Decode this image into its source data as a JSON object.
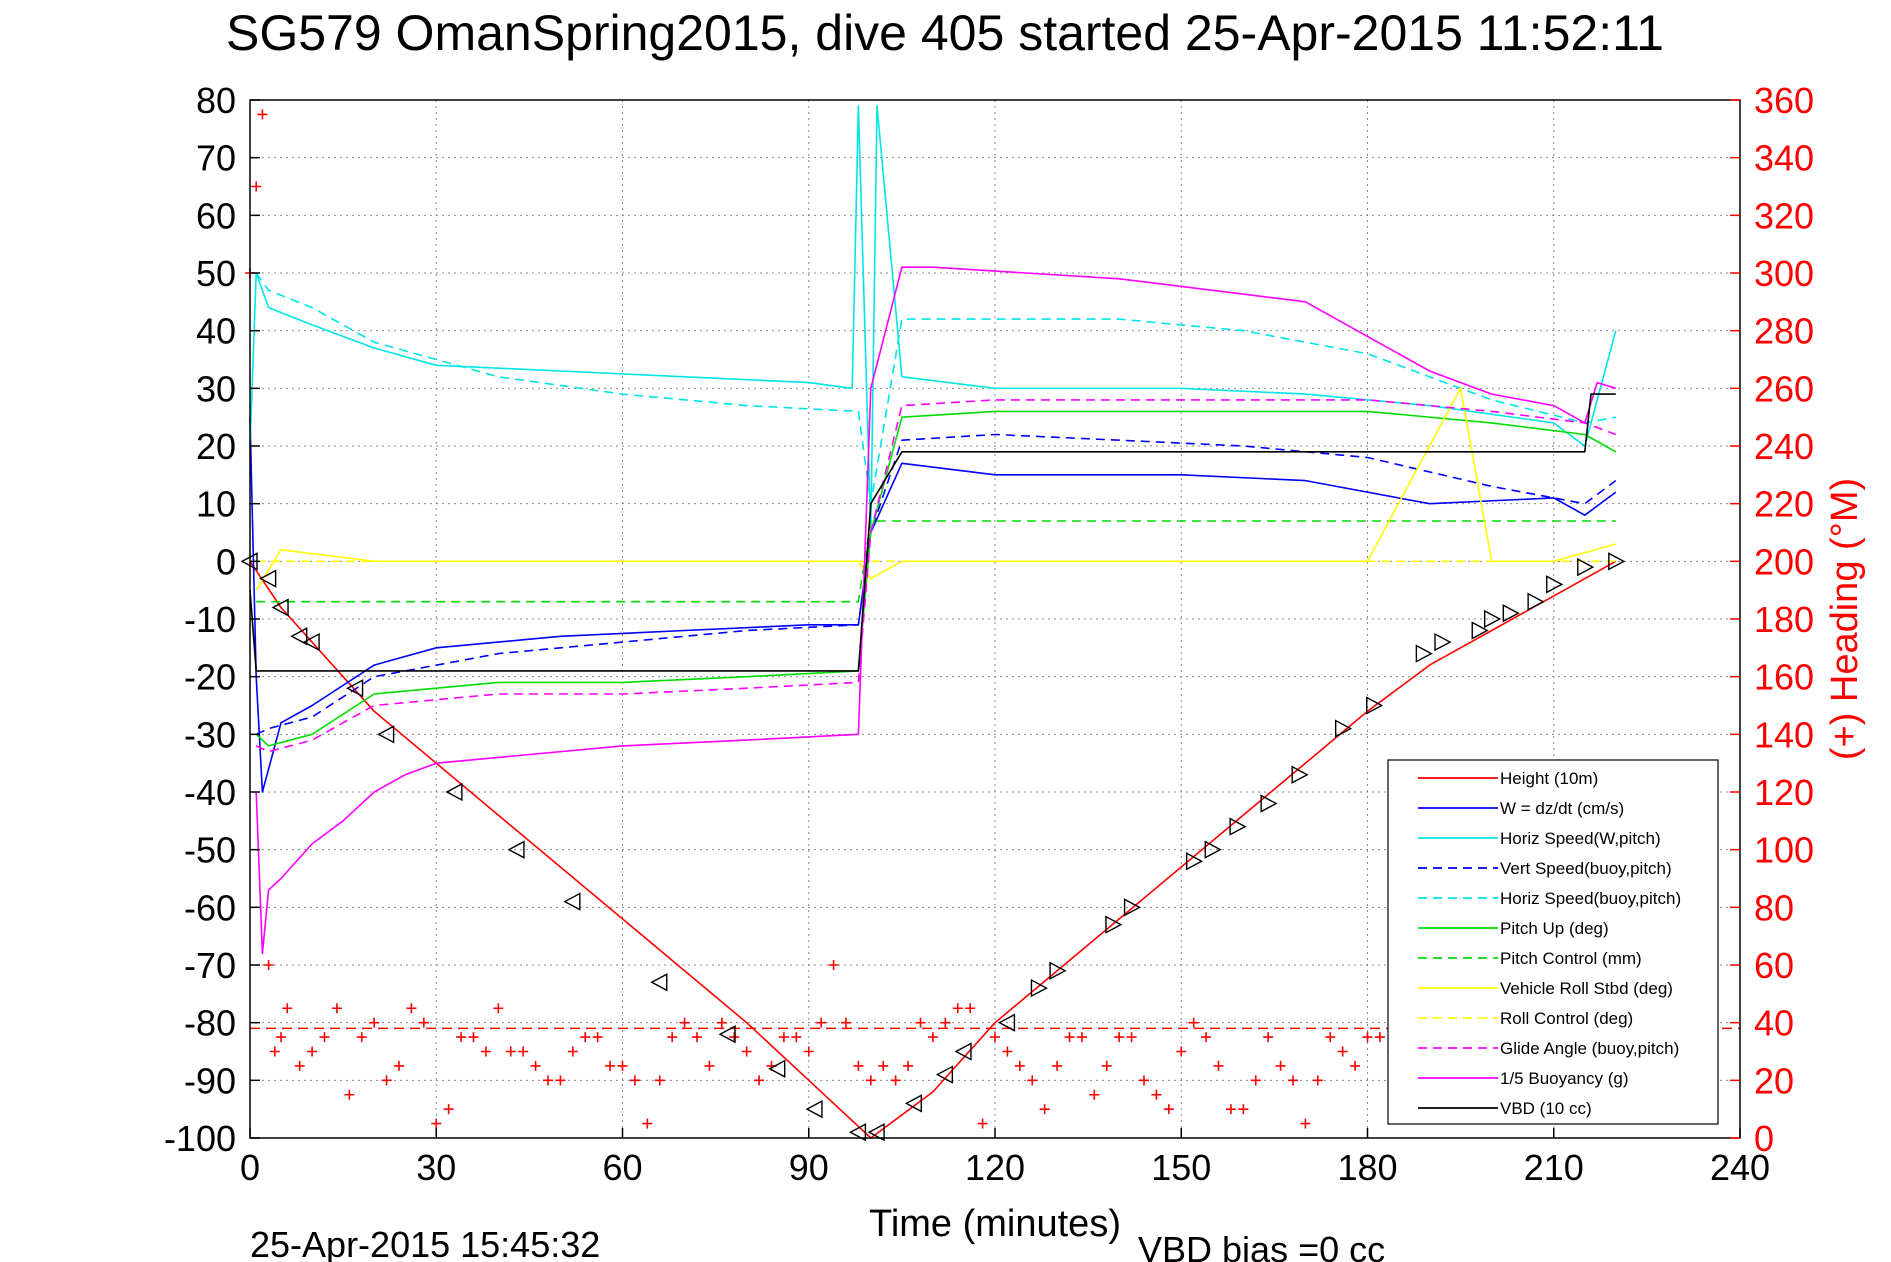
{
  "chart_data": {
    "type": "line",
    "title": "SG579 OmanSpring2015, dive 405 started 25-Apr-2015 11:52:11",
    "xlabel": "Time (minutes)",
    "ylabel": "",
    "ylabel_right": "(+) Heading (°M)",
    "footer_date": "25-Apr-2015 15:45:32",
    "footer_note": "VBD bias =0 cc",
    "xlim": [
      0,
      240
    ],
    "ylim": [
      -100,
      80
    ],
    "ylim_right": [
      0,
      360
    ],
    "x_ticks": [
      "0",
      "30",
      "60",
      "90",
      "120",
      "150",
      "180",
      "210",
      "240"
    ],
    "y_ticks": [
      "80",
      "70",
      "60",
      "50",
      "40",
      "30",
      "20",
      "10",
      "0",
      "-10",
      "-20",
      "-30",
      "-40",
      "-50",
      "-60",
      "-70",
      "-80",
      "-90",
      "-100"
    ],
    "y_ticks_right": [
      "360",
      "340",
      "320",
      "300",
      "280",
      "260",
      "240",
      "220",
      "200",
      "180",
      "160",
      "140",
      "120",
      "100",
      "80",
      "60",
      "40",
      "20",
      "0"
    ],
    "grid": true,
    "legend_position": "lower-right",
    "series": [
      {
        "name": "Height (10m)",
        "color": "#ff0000",
        "style": "solid",
        "x": [
          0,
          5,
          20,
          40,
          60,
          80,
          90,
          95,
          100,
          110,
          120,
          140,
          160,
          180,
          190,
          200,
          210,
          220
        ],
        "y": [
          0,
          -8,
          -26,
          -44,
          -62,
          -80,
          -90,
          -95,
          -100,
          -92,
          -80,
          -62,
          -44,
          -26,
          -18,
          -12,
          -6,
          0
        ]
      },
      {
        "name": "W = dz/dt (cm/s)",
        "color": "#0000ff",
        "style": "solid",
        "x": [
          0,
          1,
          2,
          5,
          10,
          20,
          30,
          50,
          70,
          90,
          98,
          100,
          105,
          120,
          150,
          170,
          190,
          210,
          215,
          220
        ],
        "y": [
          25,
          -20,
          -40,
          -28,
          -25,
          -18,
          -15,
          -13,
          -12,
          -11,
          -11,
          5,
          17,
          15,
          15,
          14,
          10,
          11,
          8,
          12
        ]
      },
      {
        "name": "Horiz Speed(W,pitch)",
        "color": "#00e6e6",
        "style": "solid",
        "x": [
          0,
          1,
          3,
          10,
          20,
          30,
          50,
          70,
          90,
          97,
          98,
          100,
          101,
          105,
          120,
          150,
          170,
          190,
          210,
          215,
          220
        ],
        "y": [
          20,
          50,
          44,
          41,
          37,
          34,
          33,
          32,
          31,
          30,
          79,
          5,
          79,
          32,
          30,
          30,
          29,
          27,
          24,
          20,
          40
        ]
      },
      {
        "name": "Vert Speed(buoy,pitch)",
        "color": "#0000ff",
        "style": "dashed",
        "x": [
          1,
          3,
          10,
          20,
          40,
          60,
          80,
          98,
          100,
          105,
          120,
          140,
          160,
          180,
          200,
          215,
          220
        ],
        "y": [
          -30,
          -29,
          -27,
          -20,
          -16,
          -14,
          -12,
          -11,
          5,
          21,
          22,
          21,
          20,
          18,
          13,
          10,
          14
        ]
      },
      {
        "name": "Horiz Speed(buoy,pitch)",
        "color": "#00e6e6",
        "style": "dashed",
        "x": [
          1,
          3,
          10,
          20,
          40,
          60,
          80,
          98,
          100,
          105,
          120,
          140,
          160,
          180,
          200,
          215,
          220
        ],
        "y": [
          50,
          47,
          44,
          38,
          32,
          29,
          27,
          26,
          10,
          42,
          42,
          42,
          40,
          36,
          28,
          24,
          25
        ]
      },
      {
        "name": "Pitch Up (deg)",
        "color": "#00dd00",
        "style": "solid",
        "x": [
          1,
          3,
          10,
          20,
          40,
          60,
          80,
          98,
          100,
          105,
          120,
          140,
          160,
          180,
          200,
          215,
          220
        ],
        "y": [
          -30,
          -32,
          -30,
          -23,
          -21,
          -21,
          -20,
          -19,
          5,
          25,
          26,
          26,
          26,
          26,
          24,
          22,
          19
        ]
      },
      {
        "name": "Pitch Control (mm)",
        "color": "#00dd00",
        "style": "dashed",
        "x": [
          1,
          98,
          100,
          220
        ],
        "y": [
          -7,
          -7,
          7,
          7
        ]
      },
      {
        "name": "Vehicle Roll Stbd (deg)",
        "color": "#ffff00",
        "style": "solid",
        "x": [
          1,
          5,
          20,
          30,
          40,
          60,
          80,
          98,
          100,
          105,
          120,
          140,
          160,
          180,
          195,
          200,
          210,
          220
        ],
        "y": [
          -5,
          2,
          0,
          0,
          0,
          0,
          0,
          0,
          -3,
          0,
          0,
          0,
          0,
          0,
          30,
          0,
          0,
          3
        ]
      },
      {
        "name": "Roll Control (deg)",
        "color": "#ffff00",
        "style": "dashed",
        "x": [
          1,
          220
        ],
        "y": [
          0,
          0
        ]
      },
      {
        "name": "Glide Angle (buoy,pitch)",
        "color": "#ff00ff",
        "style": "dashed",
        "x": [
          1,
          3,
          10,
          20,
          40,
          60,
          80,
          98,
          100,
          105,
          120,
          140,
          160,
          180,
          200,
          215,
          220
        ],
        "y": [
          -32,
          -33,
          -31,
          -25,
          -23,
          -23,
          -22,
          -21,
          5,
          27,
          28,
          28,
          28,
          28,
          26,
          24,
          22
        ]
      },
      {
        "name": "1/5 Buoyancy (g)",
        "color": "#ff00ff",
        "style": "solid",
        "x": [
          1,
          2,
          3,
          5,
          10,
          15,
          20,
          25,
          30,
          40,
          60,
          80,
          98,
          100,
          105,
          110,
          140,
          170,
          180,
          190,
          200,
          210,
          215,
          217,
          220
        ],
        "y": [
          -40,
          -68,
          -57,
          -55,
          -49,
          -45,
          -40,
          -37,
          -35,
          -34,
          -32,
          -31,
          -30,
          30,
          51,
          51,
          49,
          45,
          39,
          33,
          29,
          27,
          24,
          31,
          30
        ]
      },
      {
        "name": "VBD (10 cc)",
        "color": "#000000",
        "style": "solid",
        "x": [
          0,
          1,
          2,
          98,
          100,
          105,
          215,
          216,
          220
        ],
        "y": [
          -5,
          -19,
          -19,
          -19,
          10,
          19,
          19,
          29,
          29
        ]
      }
    ],
    "heading_series": {
      "name": "Heading",
      "axis": "right",
      "color": "#ff0000",
      "style": "markers",
      "x": [
        0,
        1,
        2,
        3,
        4,
        5,
        6,
        8,
        10,
        12,
        14,
        16,
        18,
        20,
        22,
        24,
        26,
        28,
        30,
        32,
        34,
        36,
        38,
        40,
        42,
        44,
        46,
        48,
        50,
        52,
        54,
        56,
        58,
        60,
        62,
        64,
        66,
        68,
        70,
        72,
        74,
        76,
        78,
        80,
        82,
        84,
        86,
        88,
        90,
        92,
        94,
        96,
        98,
        100,
        102,
        104,
        106,
        108,
        110,
        112,
        114,
        116,
        118,
        120,
        122,
        124,
        126,
        128,
        130,
        132,
        134,
        136,
        138,
        140,
        142,
        144,
        146,
        148,
        150,
        152,
        154,
        156,
        158,
        160,
        162,
        164,
        166,
        168,
        170,
        172,
        174,
        176,
        178,
        180,
        182,
        184,
        186,
        188,
        190,
        192,
        194,
        196,
        198,
        200,
        202,
        204,
        206,
        208,
        210,
        212,
        214,
        216,
        218
      ],
      "y": [
        300,
        330,
        355,
        60,
        30,
        35,
        45,
        25,
        30,
        35,
        45,
        15,
        35,
        40,
        20,
        25,
        45,
        40,
        5,
        10,
        35,
        35,
        30,
        45,
        30,
        30,
        25,
        20,
        20,
        30,
        35,
        35,
        25,
        25,
        20,
        5,
        20,
        35,
        40,
        35,
        25,
        40,
        35,
        30,
        20,
        25,
        35,
        35,
        30,
        40,
        60,
        40,
        25,
        20,
        25,
        20,
        25,
        40,
        35,
        40,
        45,
        45,
        5,
        35,
        30,
        25,
        20,
        10,
        25,
        35,
        35,
        15,
        25,
        35,
        35,
        20,
        15,
        10,
        30,
        40,
        35,
        25,
        10,
        10,
        20,
        35,
        25,
        20,
        5,
        20,
        35,
        30,
        25,
        35,
        35,
        30,
        30,
        25,
        20,
        25,
        30,
        35,
        15,
        20,
        35,
        40,
        20,
        25,
        15,
        25,
        30,
        35,
        30
      ]
    },
    "trajectory_markers": {
      "down_symbol": "triangle-left",
      "up_symbol": "triangle-right",
      "x": [
        0,
        3,
        5,
        8,
        10,
        17,
        22,
        33,
        43,
        52,
        66,
        77,
        85,
        91,
        98,
        101,
        107,
        112,
        115,
        122,
        127,
        130,
        139,
        142,
        152,
        155,
        159,
        164,
        169,
        176,
        181,
        189,
        192,
        198,
        200,
        203,
        207,
        210,
        215,
        220
      ],
      "y": [
        0,
        -3,
        -8,
        -13,
        -14,
        -22,
        -30,
        -40,
        -50,
        -59,
        -73,
        -82,
        -88,
        -95,
        -99,
        -99,
        -94,
        -89,
        -85,
        -80,
        -74,
        -71,
        -63,
        -60,
        -52,
        -50,
        -46,
        -42,
        -37,
        -29,
        -25,
        -16,
        -14,
        -12,
        -10,
        -9,
        -7,
        -4,
        -1,
        0
      ]
    },
    "reference_lines": [
      {
        "axis": "right",
        "value": 38,
        "color": "#ff0000",
        "style": "dashed"
      }
    ]
  }
}
